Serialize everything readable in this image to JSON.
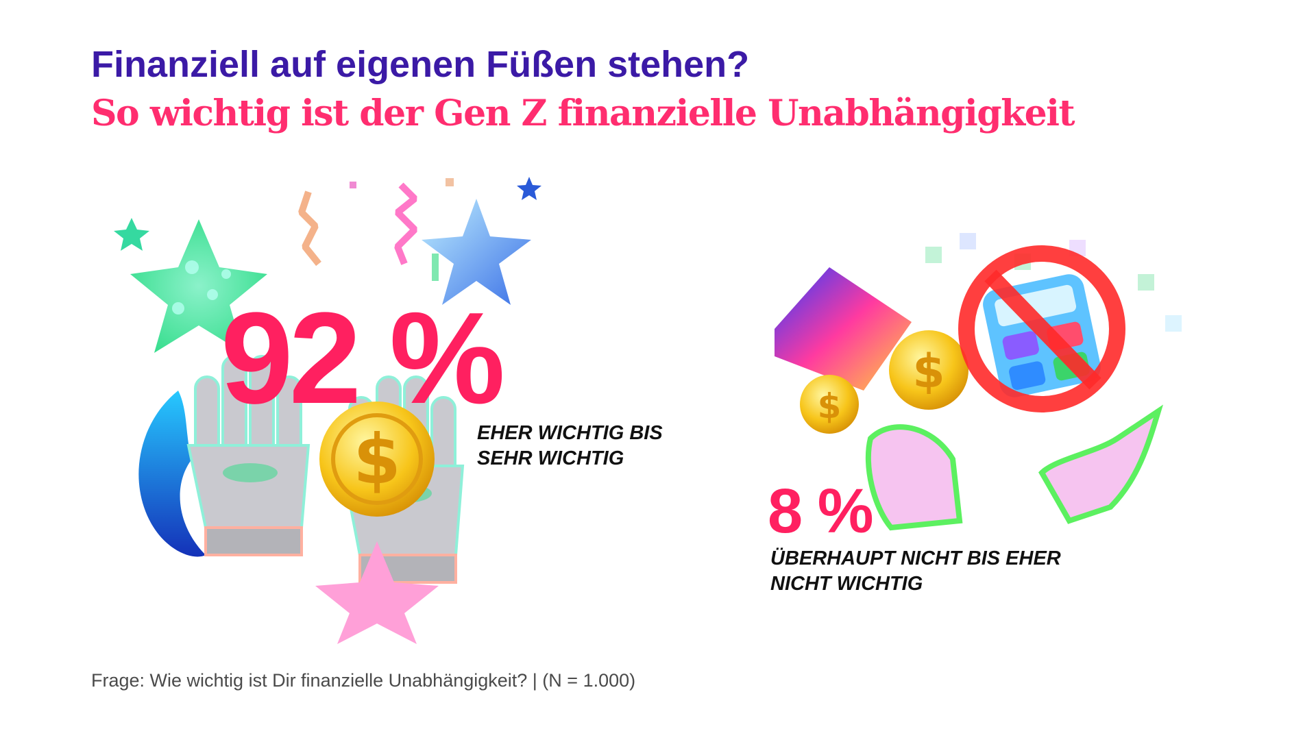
{
  "title": "Finanziell auf eigenen Füßen stehen?",
  "subtitle": "So wichtig ist der Gen Z finanzielle Unabhängigkeit",
  "footnote": "Frage: Wie wichtig ist Dir finanzielle Unabhängigkeit? | (N = 1.000)",
  "colors": {
    "title": "#3b1aa6",
    "subtitle": "#ff2d6f",
    "percentage": "#ff2060",
    "label": "#111111"
  },
  "stats": [
    {
      "value_text": "92 %",
      "label_line1": "EHER WICHTIG BIS",
      "label_line2": "SEHR WICHTIG"
    },
    {
      "value_text": "8 %",
      "label_line1": "ÜBERHAUPT NICHT BIS EHER",
      "label_line2": "NICHT WICHTIG"
    }
  ],
  "illustrations": {
    "left": [
      "star-icon",
      "confetti-icon",
      "flame-icon",
      "hands-icon",
      "coin-icon"
    ],
    "right": [
      "wallet-icon",
      "coin-icon",
      "calculator-icon",
      "prohibited-icon",
      "hands-icon"
    ]
  },
  "chart_data": {
    "type": "pie",
    "categories": [
      "EHER WICHTIG BIS SEHR WICHTIG",
      "ÜBERHAUPT NICHT BIS EHER NICHT WICHTIG"
    ],
    "values": [
      92,
      8
    ],
    "unit": "%"
  }
}
